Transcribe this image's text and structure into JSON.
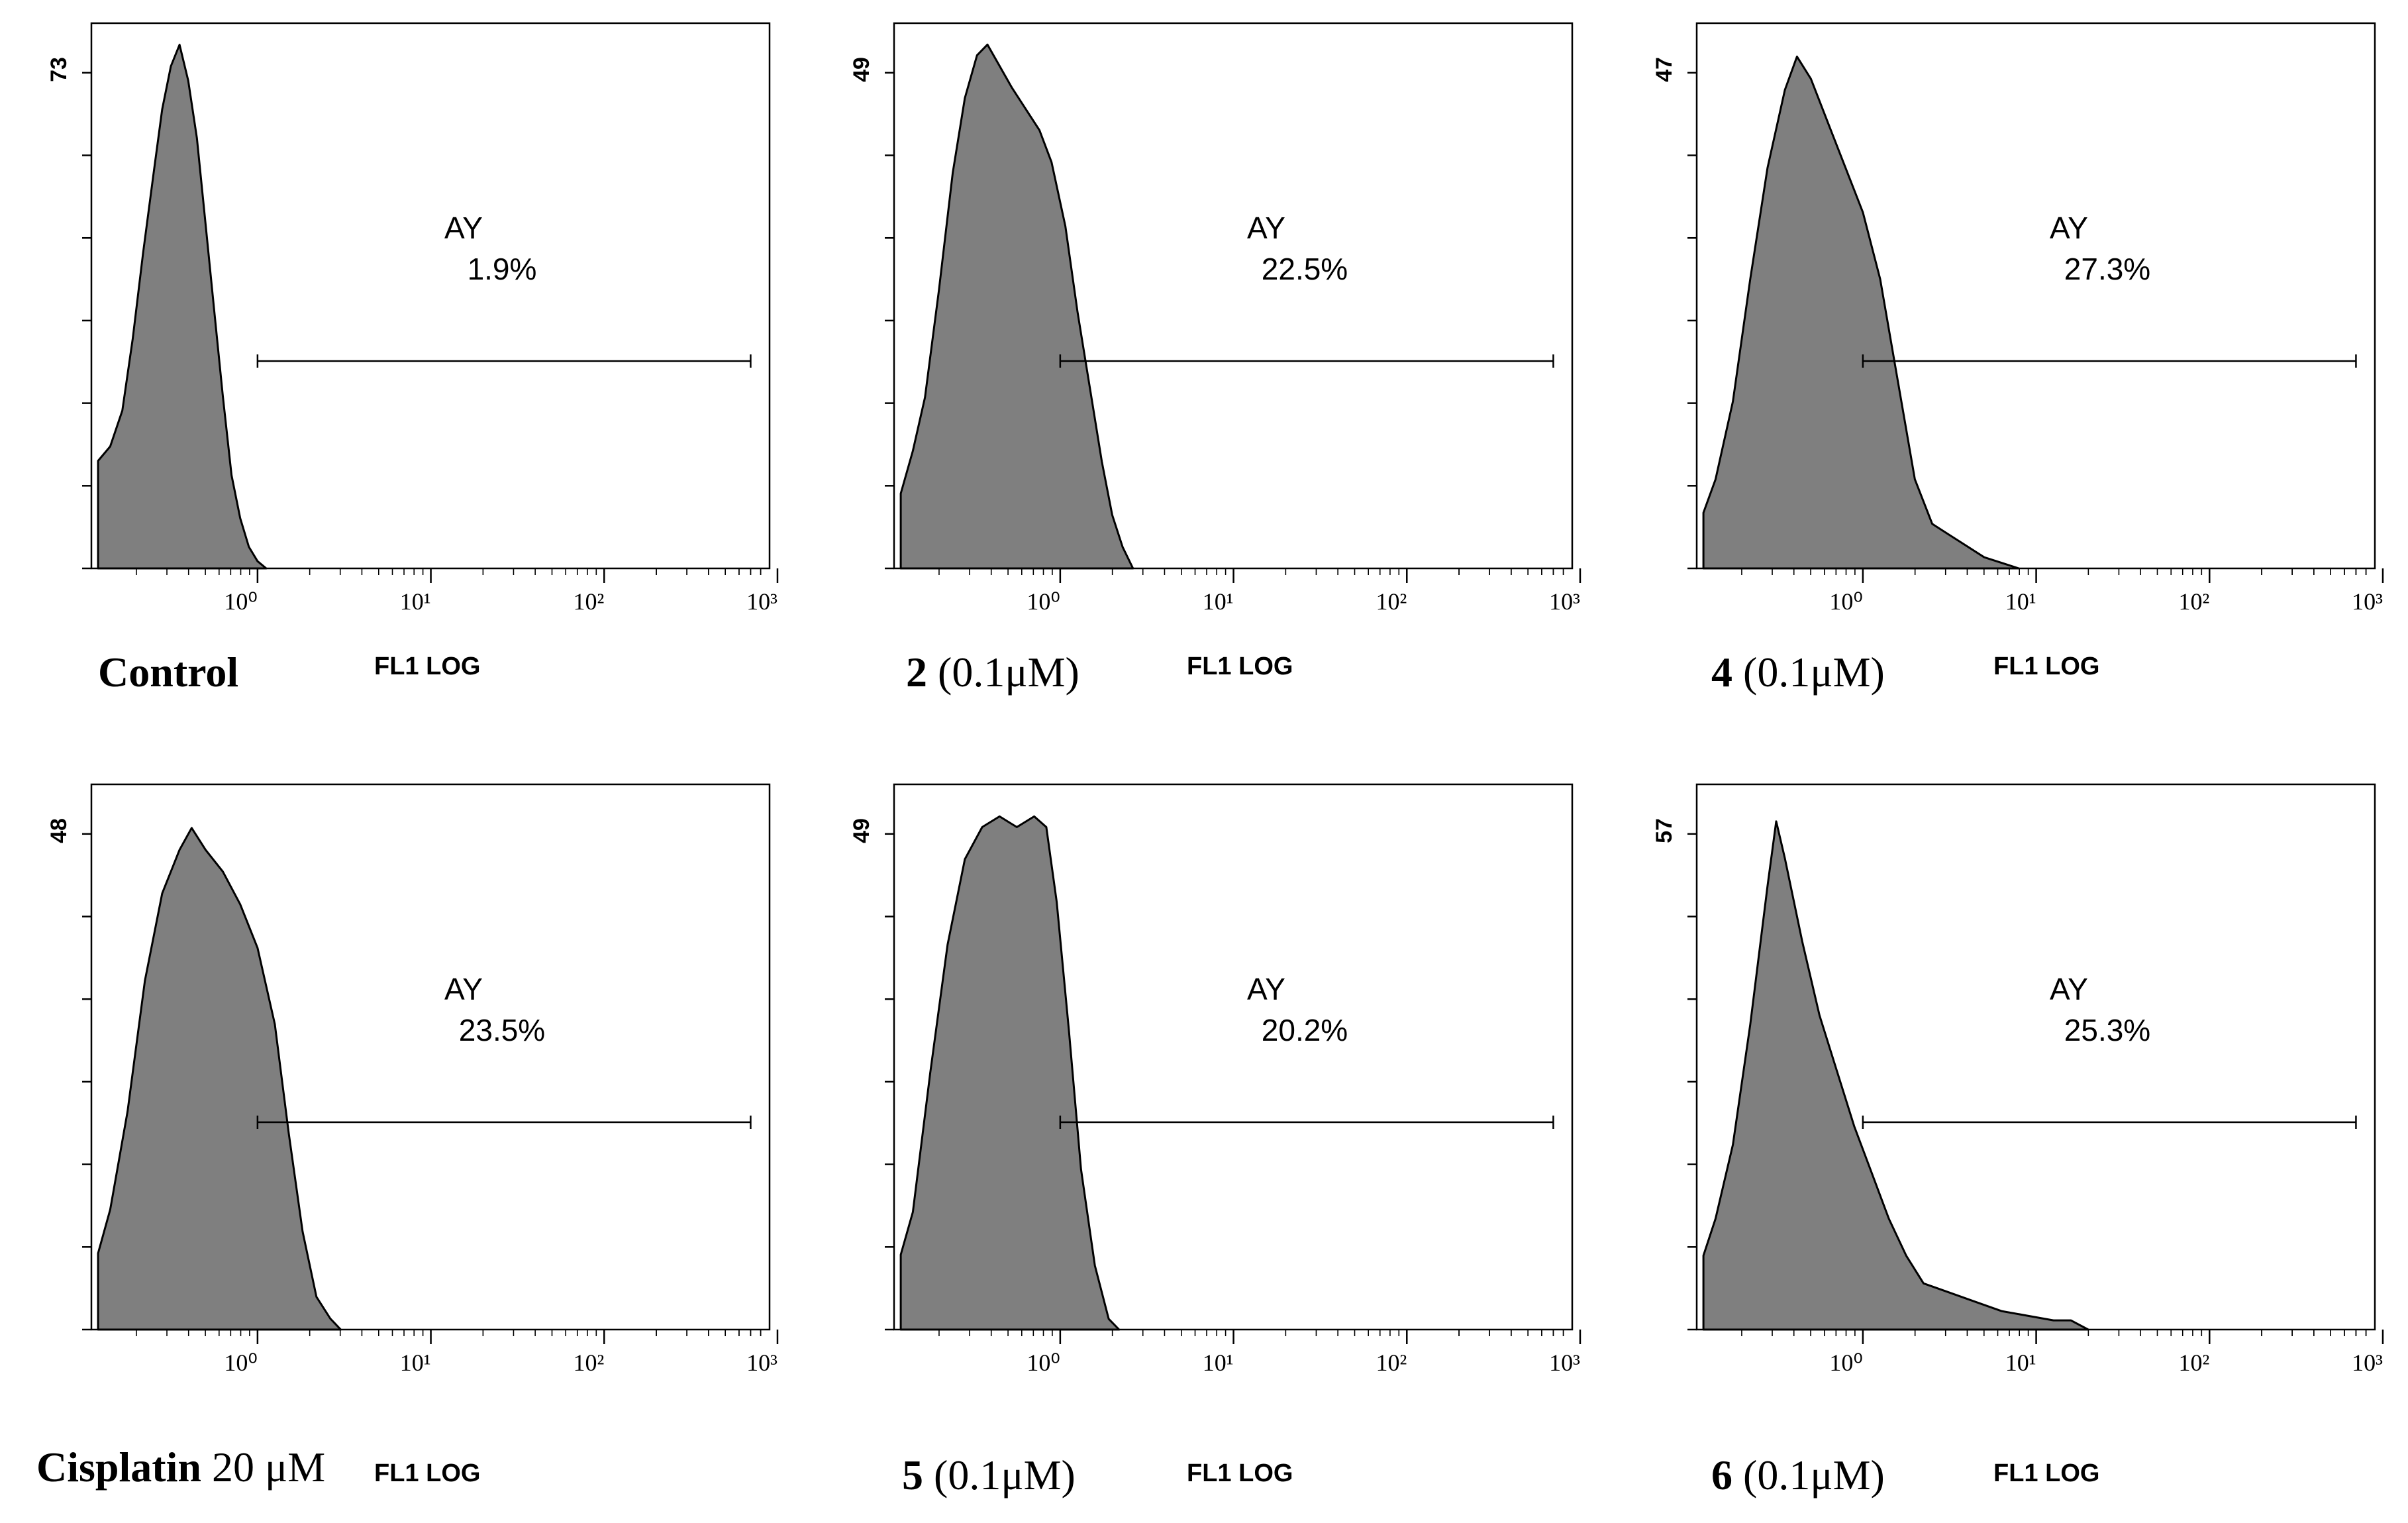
{
  "figure_type": "flow cytometry histograms",
  "colors": {
    "histogram_fill": "#7f7f7f",
    "histogram_outline": "#000000",
    "axis": "#000000",
    "background": "#ffffff"
  },
  "chart_data": [
    {
      "type": "area",
      "title": "Control",
      "caption_bold": "Control",
      "caption_plain": "",
      "xlabel": "FL1 LOG",
      "xscale": "log",
      "xlim": [
        0.11,
        900
      ],
      "xticks": [
        "10⁰",
        "10¹",
        "10²",
        "10³"
      ],
      "ymax_label": "73",
      "ylim": [
        0,
        76
      ],
      "gate_name": "AY",
      "gate_percent": "1.9%",
      "gate_range": [
        1,
        700
      ],
      "series": [
        {
          "name": "Control",
          "x_log10": [
            -0.92,
            -0.85,
            -0.78,
            -0.72,
            -0.66,
            -0.6,
            -0.55,
            -0.5,
            -0.45,
            -0.4,
            -0.35,
            -0.3,
            -0.25,
            -0.2,
            -0.15,
            -0.1,
            -0.05,
            0,
            0.05
          ],
          "values": [
            15,
            17,
            22,
            32,
            44,
            55,
            64,
            70,
            73,
            68,
            60,
            48,
            36,
            24,
            13,
            7,
            3,
            1,
            0
          ]
        }
      ]
    },
    {
      "type": "area",
      "title": "2 (0.1μM)",
      "caption_bold": "2",
      "caption_plain": " (0.1μM)",
      "xlabel": "FL1 LOG",
      "xscale": "log",
      "xlim": [
        0.11,
        900
      ],
      "xticks": [
        "10⁰",
        "10¹",
        "10²",
        "10³"
      ],
      "ymax_label": "49",
      "ylim": [
        0,
        51
      ],
      "gate_name": "AY",
      "gate_percent": "22.5%",
      "gate_range": [
        1,
        700
      ],
      "series": [
        {
          "name": "2",
          "x_log10": [
            -0.92,
            -0.85,
            -0.78,
            -0.7,
            -0.62,
            -0.55,
            -0.48,
            -0.42,
            -0.35,
            -0.28,
            -0.2,
            -0.12,
            -0.05,
            0.03,
            0.1,
            0.17,
            0.24,
            0.3,
            0.36,
            0.42
          ],
          "values": [
            7,
            11,
            16,
            26,
            37,
            44,
            48,
            49,
            47,
            45,
            43,
            41,
            38,
            32,
            24,
            17,
            10,
            5,
            2,
            0
          ]
        }
      ]
    },
    {
      "type": "area",
      "title": "4 (0.1μM)",
      "caption_bold": "4",
      "caption_plain": " (0.1μM)",
      "xlabel": "FL1 LOG",
      "xscale": "log",
      "xlim": [
        0.11,
        900
      ],
      "xticks": [
        "10⁰",
        "10¹",
        "10²",
        "10³"
      ],
      "ymax_label": "47",
      "ylim": [
        0,
        49
      ],
      "gate_name": "AY",
      "gate_percent": "27.3%",
      "gate_range": [
        1,
        700
      ],
      "series": [
        {
          "name": "4",
          "x_log10": [
            -0.92,
            -0.85,
            -0.75,
            -0.65,
            -0.55,
            -0.45,
            -0.38,
            -0.3,
            -0.2,
            -0.1,
            0,
            0.1,
            0.2,
            0.3,
            0.4,
            0.5,
            0.6,
            0.7,
            0.8,
            0.9
          ],
          "values": [
            5,
            8,
            15,
            26,
            36,
            43,
            46,
            44,
            40,
            36,
            32,
            26,
            17,
            8,
            4,
            3,
            2,
            1,
            0.5,
            0
          ]
        }
      ]
    },
    {
      "type": "area",
      "title": "Cisplatin 20 μM",
      "caption_bold": "Cisplatin",
      "caption_plain": " 20 μM",
      "xlabel": "FL1 LOG",
      "xscale": "log",
      "xlim": [
        0.11,
        900
      ],
      "xticks": [
        "10⁰",
        "10¹",
        "10²",
        "10³"
      ],
      "ymax_label": "48",
      "ylim": [
        0,
        50
      ],
      "gate_name": "AY",
      "gate_percent": "23.5%",
      "gate_range": [
        1,
        700
      ],
      "series": [
        {
          "name": "Cisplatin",
          "x_log10": [
            -0.92,
            -0.85,
            -0.75,
            -0.65,
            -0.55,
            -0.45,
            -0.38,
            -0.3,
            -0.2,
            -0.1,
            0,
            0.1,
            0.18,
            0.26,
            0.34,
            0.42,
            0.48
          ],
          "values": [
            7,
            11,
            20,
            32,
            40,
            44,
            46,
            44,
            42,
            39,
            35,
            28,
            18,
            9,
            3,
            1,
            0
          ]
        }
      ]
    },
    {
      "type": "area",
      "title": "5 (0.1μM)",
      "caption_bold": "5",
      "caption_plain": " (0.1μM)",
      "xlabel": "FL1 LOG",
      "xscale": "log",
      "xlim": [
        0.11,
        900
      ],
      "xticks": [
        "10⁰",
        "10¹",
        "10²",
        "10³"
      ],
      "ymax_label": "49",
      "ylim": [
        0,
        51
      ],
      "gate_name": "AY",
      "gate_percent": "20.2%",
      "gate_range": [
        1,
        700
      ],
      "series": [
        {
          "name": "5",
          "x_log10": [
            -0.92,
            -0.85,
            -0.75,
            -0.65,
            -0.55,
            -0.45,
            -0.35,
            -0.25,
            -0.15,
            -0.08,
            -0.02,
            0.05,
            0.12,
            0.2,
            0.28,
            0.34
          ],
          "values": [
            7,
            11,
            24,
            36,
            44,
            47,
            48,
            47,
            48,
            47,
            40,
            28,
            15,
            6,
            1,
            0
          ]
        }
      ]
    },
    {
      "type": "area",
      "title": "6 (0.1μM)",
      "caption_bold": "6",
      "caption_plain": " (0.1μM)",
      "xlabel": "FL1 LOG",
      "xscale": "log",
      "xlim": [
        0.11,
        900
      ],
      "xticks": [
        "10⁰",
        "10¹",
        "10²",
        "10³"
      ],
      "ymax_label": "57",
      "ylim": [
        0,
        59
      ],
      "gate_name": "AY",
      "gate_percent": "25.3%",
      "gate_range": [
        1,
        700
      ],
      "series": [
        {
          "name": "6",
          "x_log10": [
            -0.92,
            -0.85,
            -0.75,
            -0.65,
            -0.55,
            -0.5,
            -0.45,
            -0.35,
            -0.25,
            -0.15,
            -0.05,
            0.05,
            0.15,
            0.25,
            0.35,
            0.5,
            0.65,
            0.8,
            0.95,
            1.1,
            1.2,
            1.3
          ],
          "values": [
            8,
            12,
            20,
            33,
            48,
            55,
            51,
            42,
            34,
            28,
            22,
            17,
            12,
            8,
            5,
            4,
            3,
            2,
            1.5,
            1,
            1,
            0
          ]
        }
      ]
    }
  ]
}
